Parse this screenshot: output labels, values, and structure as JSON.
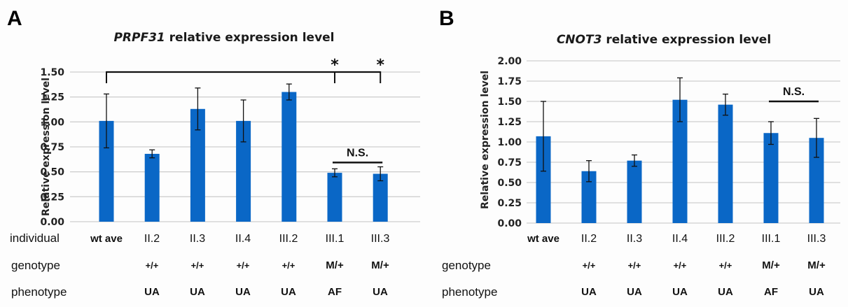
{
  "chart_data": [
    {
      "panel": "A",
      "type": "bar",
      "title_gene": "PRPF31",
      "title_rest": " relative expression level",
      "xlabel": "",
      "ylabel": "Relative expression level",
      "ylim": [
        0,
        1.5
      ],
      "yticks": [
        "0.00",
        "0.25",
        "0.50",
        "0.75",
        "1.00",
        "1.25",
        "1.50"
      ],
      "ytick_values": [
        0,
        0.25,
        0.5,
        0.75,
        1.0,
        1.25,
        1.5
      ],
      "grid": true,
      "bar_color": "#0a67c6",
      "categories": [
        "wt ave",
        "II.2",
        "II.3",
        "II.4",
        "III.2",
        "III.1",
        "III.3"
      ],
      "values": [
        1.01,
        0.68,
        1.13,
        1.01,
        1.3,
        0.49,
        0.48
      ],
      "error": [
        0.27,
        0.04,
        0.21,
        0.21,
        0.08,
        0.04,
        0.07
      ],
      "significance": [
        {
          "type": "bracket",
          "from": 0,
          "to": [
            5,
            6
          ],
          "label": "*",
          "level": 1.5
        },
        {
          "type": "line",
          "from": 5,
          "to": 6,
          "label": "N.S.",
          "level": 0.6
        }
      ]
    },
    {
      "panel": "B",
      "type": "bar",
      "title_gene": "CNOT3",
      "title_rest": " relative expression level",
      "xlabel": "",
      "ylabel": "Relative expression level",
      "ylim": [
        0,
        2.0
      ],
      "yticks": [
        "0.00",
        "0.25",
        "0.50",
        "0.75",
        "1.00",
        "1.25",
        "1.50",
        "1.75",
        "2.00"
      ],
      "ytick_values": [
        0,
        0.25,
        0.5,
        0.75,
        1.0,
        1.25,
        1.5,
        1.75,
        2.0
      ],
      "grid": true,
      "bar_color": "#0a67c6",
      "categories": [
        "wt ave",
        "II.2",
        "II.3",
        "II.4",
        "III.2",
        "III.1",
        "III.3"
      ],
      "values": [
        1.07,
        0.64,
        0.77,
        1.52,
        1.46,
        1.11,
        1.05
      ],
      "error": [
        0.43,
        0.13,
        0.07,
        0.27,
        0.13,
        0.14,
        0.24
      ],
      "significance": [
        {
          "type": "line",
          "from": 5,
          "to": 6,
          "label": "N.S.",
          "level": 1.5
        }
      ]
    }
  ],
  "table": {
    "row_labels": {
      "individual": "individual",
      "genotype": "genotype",
      "phenotype": "phenotype"
    },
    "individual": [
      "wt ave",
      "II.2",
      "II.3",
      "II.4",
      "III.2",
      "III.1",
      "III.3"
    ],
    "genotype": [
      "",
      "+/+",
      "+/+",
      "+/+",
      "+/+",
      "M/+",
      "M/+"
    ],
    "phenotype": [
      "",
      "UA",
      "UA",
      "UA",
      "UA",
      "AF",
      "UA"
    ]
  }
}
